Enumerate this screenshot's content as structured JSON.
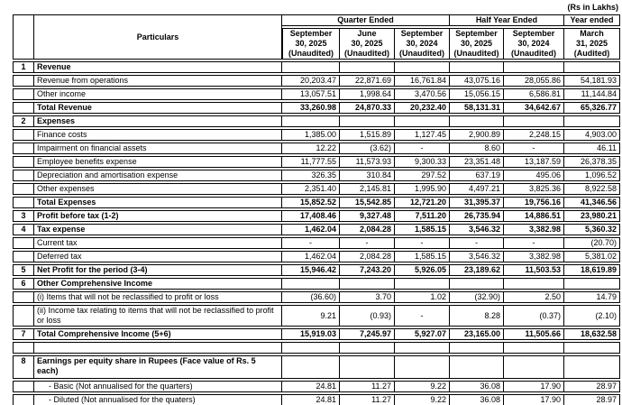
{
  "note": "(Rs in Lakhs)",
  "header": {
    "particulars": "Particulars",
    "groups": [
      {
        "label": "Quarter Ended",
        "span": 3
      },
      {
        "label": "Half Year Ended",
        "span": 2
      },
      {
        "label": "Year ended",
        "span": 1
      }
    ],
    "columns": [
      {
        "lines": [
          "September",
          "30, 2025",
          "(Unaudited)"
        ]
      },
      {
        "lines": [
          "June",
          "30, 2025",
          "(Unaudited)"
        ]
      },
      {
        "lines": [
          "September",
          "30, 2024",
          "(Unaudited)"
        ]
      },
      {
        "lines": [
          "September",
          "30, 2025",
          "(Unaudited)"
        ]
      },
      {
        "lines": [
          "September",
          "30, 2024",
          "(Unaudited)"
        ]
      },
      {
        "lines": [
          "March",
          "31, 2025",
          "(Audited)"
        ]
      }
    ]
  },
  "rows": [
    {
      "sno": "1",
      "label": "Revenue",
      "bold": true,
      "values": [
        "",
        "",
        "",
        "",
        "",
        ""
      ]
    },
    {
      "sno": "",
      "label": "Revenue from operations",
      "bold": false,
      "values": [
        "20,203.47",
        "22,871.69",
        "16,761.84",
        "43,075.16",
        "28,055.86",
        "54,181.93"
      ]
    },
    {
      "sno": "",
      "label": "Other income",
      "bold": false,
      "values": [
        "13,057.51",
        "1,998.64",
        "3,470.56",
        "15,056.15",
        "6,586.81",
        "11,144.84"
      ]
    },
    {
      "sno": "",
      "label": "Total Revenue",
      "bold": true,
      "values": [
        "33,260.98",
        "24,870.33",
        "20,232.40",
        "58,131.31",
        "34,642.67",
        "65,326.77"
      ]
    },
    {
      "sno": "2",
      "label": "Expenses",
      "bold": true,
      "values": [
        "",
        "",
        "",
        "",
        "",
        ""
      ]
    },
    {
      "sno": "",
      "label": "Finance costs",
      "bold": false,
      "values": [
        "1,385.00",
        "1,515.89",
        "1,127.45",
        "2,900.89",
        "2,248.15",
        "4,903.00"
      ]
    },
    {
      "sno": "",
      "label": "Impairment on financial assets",
      "bold": false,
      "values": [
        "12.22",
        "(3.62)",
        "-",
        "8.60",
        "-",
        "46.11"
      ]
    },
    {
      "sno": "",
      "label": "Employee benefits expense",
      "bold": false,
      "values": [
        "11,777.55",
        "11,573.93",
        "9,300.33",
        "23,351.48",
        "13,187.59",
        "26,378.35"
      ]
    },
    {
      "sno": "",
      "label": "Depreciation and amortisation expense",
      "bold": false,
      "values": [
        "326.35",
        "310.84",
        "297.52",
        "637.19",
        "495.06",
        "1,096.52"
      ]
    },
    {
      "sno": "",
      "label": "Other expenses",
      "bold": false,
      "values": [
        "2,351.40",
        "2,145.81",
        "1,995.90",
        "4,497.21",
        "3,825.36",
        "8,922.58"
      ]
    },
    {
      "sno": "",
      "label": "Total Expenses",
      "bold": true,
      "values": [
        "15,852.52",
        "15,542.85",
        "12,721.20",
        "31,395.37",
        "19,756.16",
        "41,346.56"
      ]
    },
    {
      "sno": "3",
      "label": "Profit before tax (1-2)",
      "bold": true,
      "values": [
        "17,408.46",
        "9,327.48",
        "7,511.20",
        "26,735.94",
        "14,886.51",
        "23,980.21"
      ]
    },
    {
      "sno": "4",
      "label": "Tax expense",
      "bold": true,
      "values": [
        "1,462.04",
        "2,084.28",
        "1,585.15",
        "3,546.32",
        "3,382.98",
        "5,360.32"
      ]
    },
    {
      "sno": "",
      "label": "Current tax",
      "bold": false,
      "values": [
        "-",
        "-",
        "-",
        "-",
        "-",
        "(20.70)"
      ]
    },
    {
      "sno": "",
      "label": "Deferred tax",
      "bold": false,
      "values": [
        "1,462.04",
        "2,084.28",
        "1,585.15",
        "3,546.32",
        "3,382.98",
        "5,381.02"
      ]
    },
    {
      "sno": "5",
      "label": "Net Profit for the period (3-4)",
      "bold": true,
      "values": [
        "15,946.42",
        "7,243.20",
        "5,926.05",
        "23,189.62",
        "11,503.53",
        "18,619.89"
      ]
    },
    {
      "sno": "6",
      "label": "Other Comprehensive Income",
      "bold": true,
      "values": [
        "",
        "",
        "",
        "",
        "",
        ""
      ]
    },
    {
      "sno": "",
      "label": "(i) Items that will not be reclassified to profit or loss",
      "bold": false,
      "values": [
        "(36.60)",
        "3.70",
        "1.02",
        "(32.90)",
        "2.50",
        "14.79"
      ]
    },
    {
      "sno": "",
      "label": "(ii) Income tax relating to items that will not be reclassified to profit or loss",
      "bold": false,
      "two_line": true,
      "values": [
        "9.21",
        "(0.93)",
        "-",
        "8.28",
        "(0.37)",
        "(2.10)"
      ]
    },
    {
      "sno": "7",
      "label": "Total Comprehensive Income (5+6)",
      "bold": true,
      "values": [
        "15,919.03",
        "7,245.97",
        "5,927.07",
        "23,165.00",
        "11,505.66",
        "18,632.58"
      ]
    },
    {
      "sno": "",
      "label": "",
      "bold": false,
      "values": [
        "",
        "",
        "",
        "",
        "",
        ""
      ]
    },
    {
      "sno": "8",
      "label": "Earnings per equity share in Rupees (Face value of Rs. 5 each)",
      "bold": true,
      "tall": true,
      "values": [
        "",
        "",
        "",
        "",
        "",
        ""
      ]
    },
    {
      "sno": "",
      "label": "- Basic (Not annualised for the quarters)",
      "bold": false,
      "indent": true,
      "values": [
        "24.81",
        "11.27",
        "9.22",
        "36.08",
        "17.90",
        "28.97"
      ]
    },
    {
      "sno": "",
      "label": "- Diluted (Not annualised for the quaters)",
      "bold": false,
      "indent": true,
      "values": [
        "24.81",
        "11.27",
        "9.22",
        "36.08",
        "17.90",
        "28.97"
      ]
    },
    {
      "sno": "",
      "label": "",
      "bold": false,
      "merged": true
    }
  ]
}
